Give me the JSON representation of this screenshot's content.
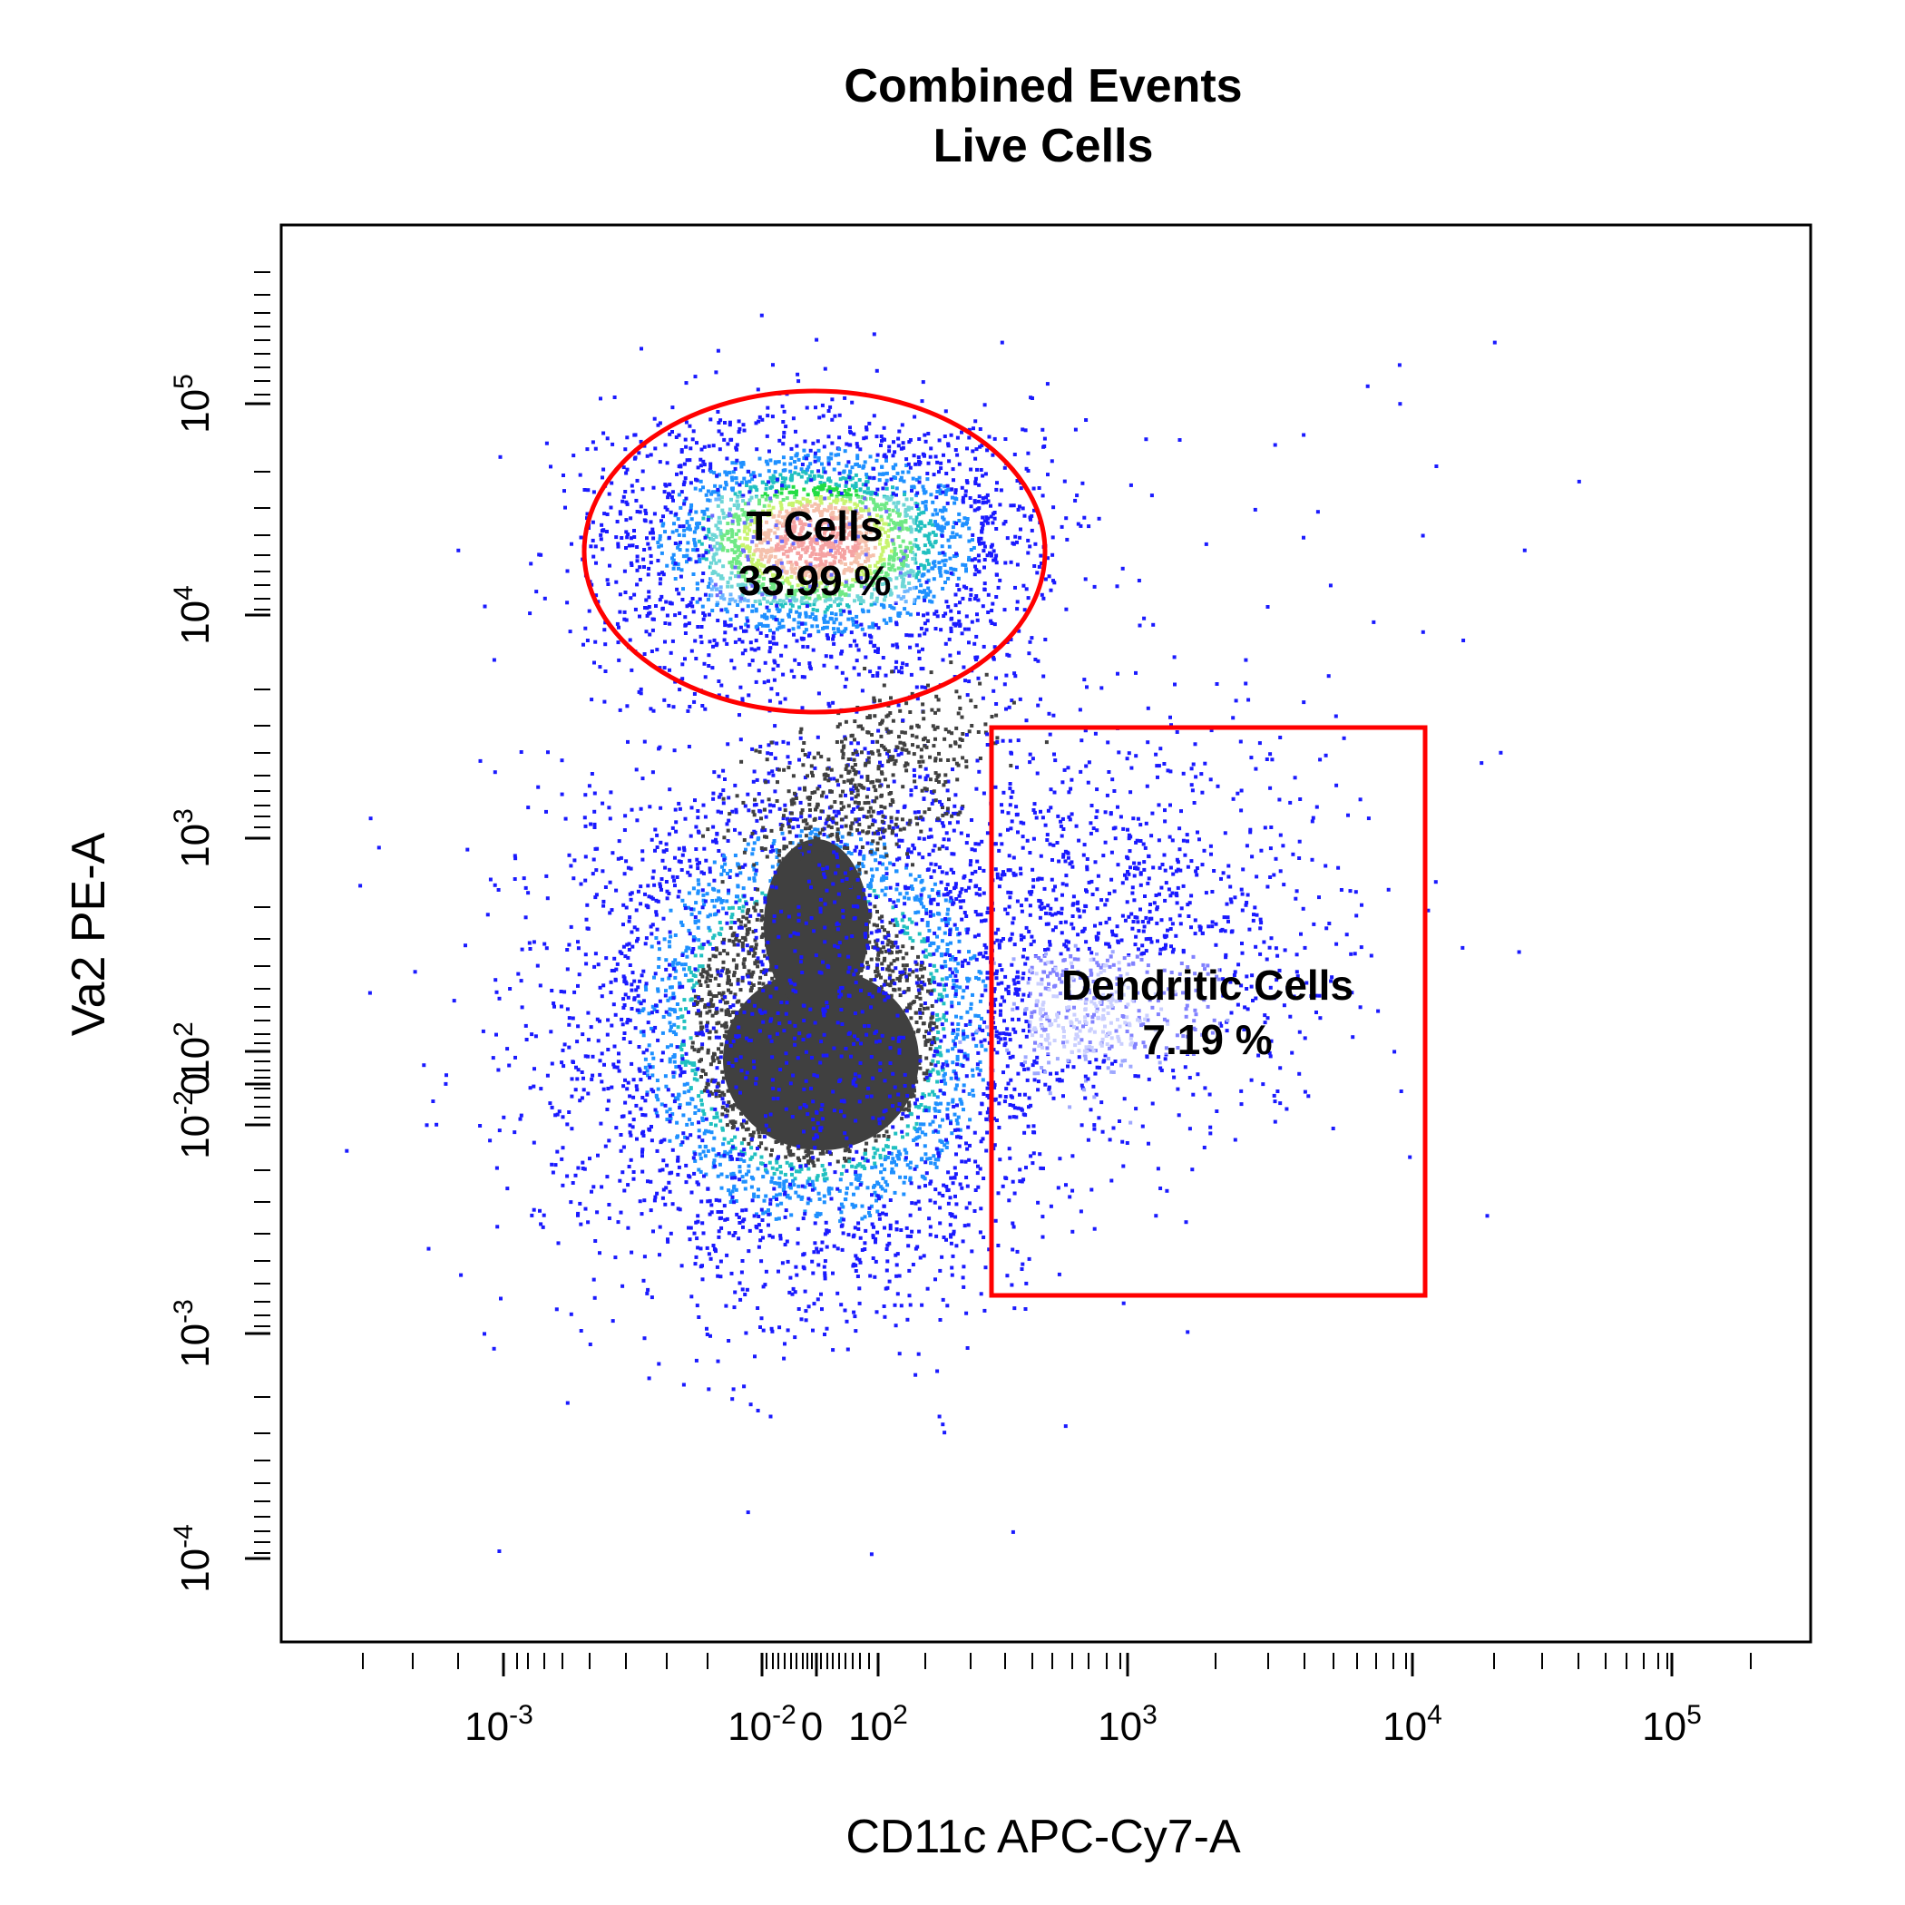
{
  "chart_data": {
    "type": "scatter",
    "title": "Combined Events",
    "subtitle": "Live Cells",
    "xlabel": "CD11c APC-Cy7-A",
    "ylabel": "Va2 PE-A",
    "x_tick_labels": [
      {
        "base": "10",
        "exp": "-3"
      },
      {
        "base": "10",
        "exp": "-2"
      },
      {
        "base": "0",
        "exp": ""
      },
      {
        "base": "10",
        "exp": "2"
      },
      {
        "base": "10",
        "exp": "3"
      },
      {
        "base": "10",
        "exp": "4"
      },
      {
        "base": "10",
        "exp": "5"
      }
    ],
    "y_tick_labels": [
      {
        "base": "10",
        "exp": "5"
      },
      {
        "base": "10",
        "exp": "4"
      },
      {
        "base": "10",
        "exp": "3"
      },
      {
        "base": "10",
        "exp": "2"
      },
      {
        "base": "0",
        "exp": ""
      },
      {
        "base": "10",
        "exp": "-2"
      },
      {
        "base": "10",
        "exp": "-3"
      },
      {
        "base": "10",
        "exp": "-4"
      }
    ],
    "populations": [
      {
        "center": [
          0,
          20000
        ],
        "spread": [
          0.55,
          0.22
        ],
        "count": 2600,
        "core_color": "#f07070"
      },
      {
        "center": [
          0,
          60
        ],
        "spread": [
          0.6,
          0.45
        ],
        "count": 4200,
        "core_color": "#404040"
      },
      {
        "center": [
          900,
          400
        ],
        "spread": [
          0.35,
          0.35
        ],
        "count": 900,
        "core_color": "#1a1aff"
      }
    ],
    "gates": [
      {
        "name": "T Cells",
        "percent": "33.99 %",
        "shape": "ellipse",
        "color": "#ff0000"
      },
      {
        "name": "Dendritic Cells",
        "percent": "7.19 %",
        "shape": "rectangle",
        "color": "#ff0000"
      }
    ],
    "grid": false,
    "legend": "none"
  }
}
